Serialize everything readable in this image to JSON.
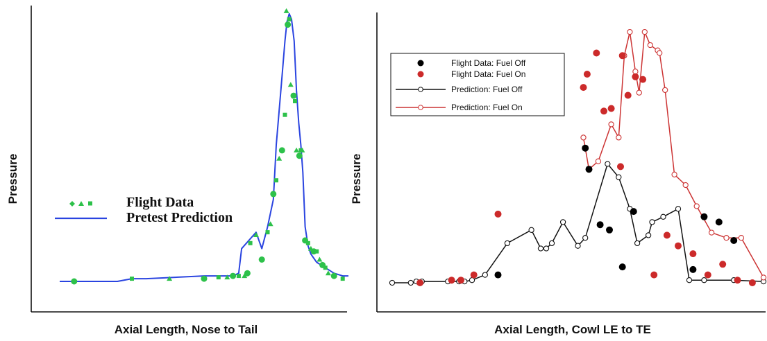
{
  "chart_data": [
    {
      "type": "scatter",
      "title": "",
      "xlabel": "Axial Length, Nose to Tail",
      "ylabel": "Pressure",
      "xlim": [
        0,
        100
      ],
      "ylim": [
        0,
        100
      ],
      "grid": false,
      "legend": {
        "placement": "center-left",
        "entries": [
          {
            "label": "Flight Data",
            "kind": "markers",
            "color": "#2dc14a"
          },
          {
            "label": "Pretest Prediction",
            "kind": "line",
            "color": "#2a44e0"
          }
        ]
      },
      "series": [
        {
          "name": "Pretest Prediction",
          "kind": "line",
          "color": "#2a44e0",
          "x": [
            0,
            20,
            25,
            30,
            40,
            50,
            60,
            62,
            63,
            68,
            70,
            72,
            74,
            75,
            77,
            78,
            78.7,
            79.5,
            80.3,
            81.2,
            82,
            82.8,
            83.5,
            84.2,
            85,
            86,
            87,
            89,
            92,
            95,
            98,
            100
          ],
          "y": [
            0,
            0,
            1,
            1,
            1.5,
            2,
            2,
            3,
            12,
            18,
            12,
            20,
            30,
            50,
            75,
            88,
            95,
            98,
            96,
            88,
            70,
            58,
            50,
            40,
            20,
            13,
            10,
            7,
            5,
            3,
            2,
            2
          ]
        },
        {
          "name": "Flight Data",
          "kind": "markers",
          "color": "#2dc14a",
          "x": [
            5,
            25,
            38,
            50,
            55,
            58,
            60,
            62,
            64,
            65,
            66,
            68,
            70,
            72,
            73,
            74,
            75,
            76,
            77,
            78,
            78.5,
            79,
            79.5,
            80,
            81,
            81.5,
            82,
            83,
            83.5,
            84,
            85,
            86,
            87,
            88,
            89,
            90,
            91,
            92,
            93,
            95,
            98
          ],
          "y": [
            0,
            1,
            1,
            1,
            1.5,
            1.5,
            2,
            2,
            2,
            3,
            14,
            17,
            8,
            18,
            21,
            32,
            37,
            45,
            48,
            61,
            99,
            94,
            96,
            72,
            68,
            66,
            48,
            46,
            48,
            48,
            15,
            14,
            12,
            11,
            11,
            8,
            6,
            5,
            3,
            2,
            1
          ]
        }
      ]
    },
    {
      "type": "line",
      "title": "",
      "xlabel": "Axial Length, Cowl LE to TE",
      "ylabel": "Pressure",
      "xlim": [
        0,
        100
      ],
      "ylim": [
        0,
        100
      ],
      "grid": false,
      "legend": {
        "placement": "top-left",
        "entries": [
          {
            "label": "Flight Data: Fuel Off",
            "kind": "markers",
            "color": "#000000"
          },
          {
            "label": "Flight Data: Fuel On",
            "kind": "markers",
            "color": "#cc2a2a"
          },
          {
            "label": "Prediction: Fuel Off",
            "kind": "line",
            "color": "#111111"
          },
          {
            "label": "Prediction: Fuel On",
            "kind": "line",
            "color": "#cc3333"
          }
        ]
      },
      "series": [
        {
          "name": "Prediction: Fuel Off",
          "kind": "line",
          "color": "#111111",
          "x": [
            0,
            5,
            6.5,
            8,
            15,
            18,
            19.5,
            21.5,
            25,
            31,
            37.5,
            40,
            41.5,
            43,
            46,
            50,
            52,
            58,
            61,
            64,
            66,
            69,
            70,
            73,
            77,
            80,
            84,
            92,
            100
          ],
          "y": [
            0,
            0,
            0.5,
            0.5,
            0.5,
            0.5,
            0.5,
            1,
            3,
            15,
            20,
            13,
            13,
            15,
            23,
            14,
            17,
            45,
            40,
            28,
            15,
            18,
            23,
            25,
            28,
            1,
            1,
            1,
            0.5
          ]
        },
        {
          "name": "Prediction: Fuel On",
          "kind": "line",
          "color": "#cc3333",
          "x": [
            51.5,
            53,
            55.5,
            59,
            61,
            62.5,
            64,
            65.5,
            66.5,
            68,
            69.5,
            71.5,
            72,
            73.5,
            76,
            79,
            82,
            86,
            90,
            94,
            100
          ],
          "y": [
            55,
            43,
            46,
            60,
            55,
            86,
            95,
            80,
            72,
            95,
            90,
            88,
            87,
            73,
            41,
            37,
            29,
            19,
            17,
            17,
            2
          ]
        },
        {
          "name": "Flight Data: Fuel Off",
          "kind": "markers",
          "color": "#000000",
          "x": [
            28.5,
            52,
            53,
            56,
            58.5,
            62,
            65,
            81,
            84,
            88,
            92
          ],
          "y": [
            3,
            51,
            43,
            22,
            20,
            6,
            27,
            5,
            25,
            23,
            16
          ]
        },
        {
          "name": "Flight Data: Fuel On",
          "kind": "markers",
          "color": "#cc2a2a",
          "x": [
            7.5,
            16,
            18.5,
            22,
            28.5,
            51.5,
            52.5,
            55,
            57,
            59,
            61.5,
            62,
            63.5,
            65.5,
            67.5,
            70.5,
            74,
            77,
            81,
            85,
            89,
            93,
            97
          ],
          "y": [
            0,
            1,
            1,
            3,
            26,
            74,
            79,
            87,
            65,
            66,
            44,
            86,
            71,
            78,
            77,
            3,
            18,
            14,
            11,
            3,
            7,
            1,
            0
          ]
        }
      ]
    }
  ]
}
